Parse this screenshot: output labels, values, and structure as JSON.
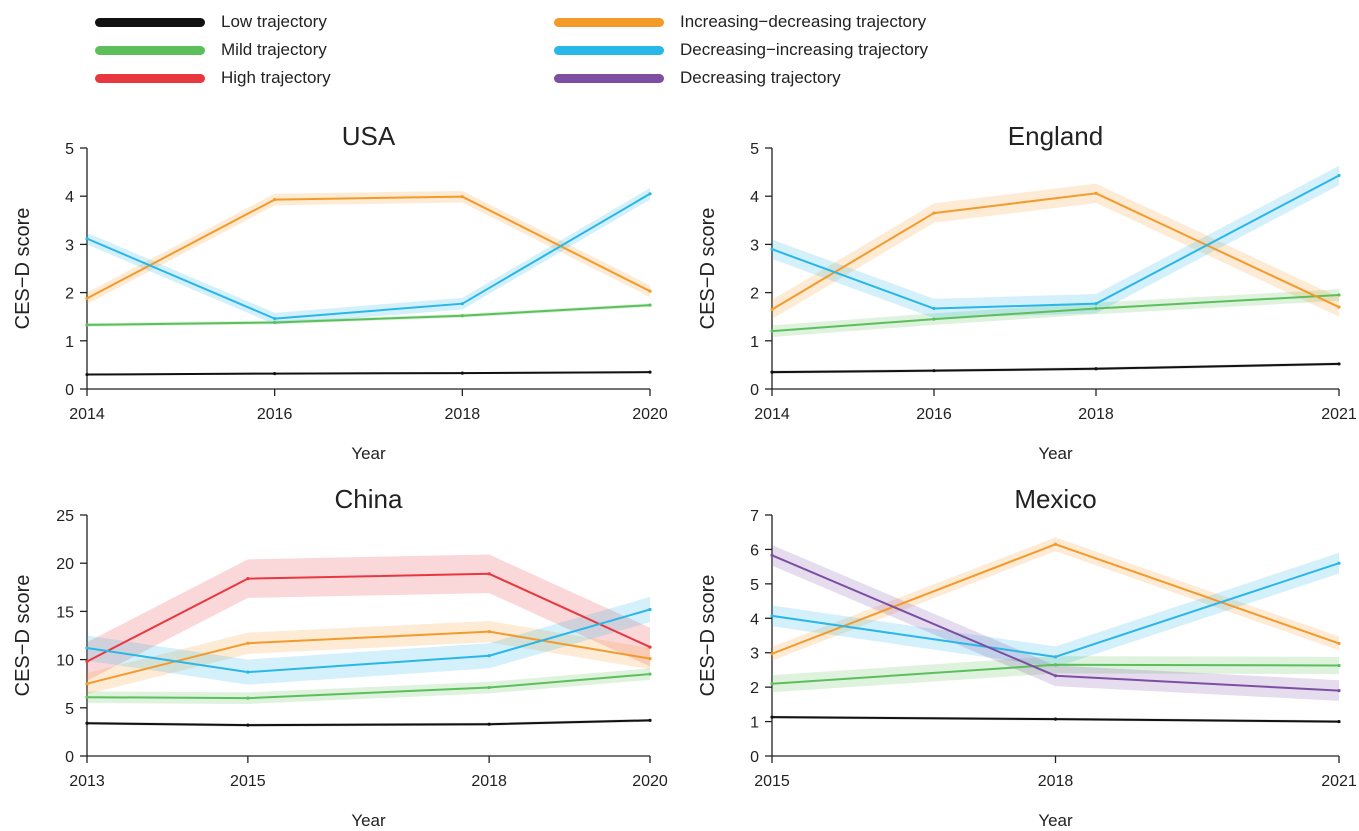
{
  "legend": [
    {
      "key": "low",
      "label": "Low trajectory",
      "color": "#111111"
    },
    {
      "key": "mild",
      "label": "Mild trajectory",
      "color": "#5cbf5c"
    },
    {
      "key": "high",
      "label": "High trajectory",
      "color": "#e8373f"
    },
    {
      "key": "incdec",
      "label": "Increasing−decreasing trajectory",
      "color": "#f39a2b"
    },
    {
      "key": "decinc",
      "label": "Decreasing−increasing trajectory",
      "color": "#29b6e8"
    },
    {
      "key": "dec",
      "label": "Decreasing trajectory",
      "color": "#7e4ea3"
    }
  ],
  "chart_data": [
    {
      "type": "line",
      "title": "USA",
      "xlabel": "Year",
      "ylabel": "CES−D score",
      "x": [
        2014,
        2016,
        2018,
        2020
      ],
      "xlim": [
        2014,
        2020
      ],
      "ylim": [
        0,
        5
      ],
      "yticks": [
        0,
        1,
        2,
        3,
        4,
        5
      ],
      "series": [
        {
          "name": "Low trajectory",
          "key": "low",
          "values": [
            0.3,
            0.32,
            0.33,
            0.35
          ],
          "band": 0.02
        },
        {
          "name": "Mild trajectory",
          "key": "mild",
          "values": [
            1.33,
            1.38,
            1.52,
            1.74
          ],
          "band": 0.04
        },
        {
          "name": "Increasing−decreasing trajectory",
          "key": "incdec",
          "values": [
            1.88,
            3.93,
            3.99,
            2.03
          ],
          "band": 0.12
        },
        {
          "name": "Decreasing−increasing trajectory",
          "key": "decinc",
          "values": [
            3.12,
            1.46,
            1.77,
            4.05
          ],
          "band": 0.12
        }
      ]
    },
    {
      "type": "line",
      "title": "England",
      "xlabel": "Year",
      "ylabel": "CES−D score",
      "x": [
        2014,
        2016,
        2018,
        2021
      ],
      "xlim": [
        2014,
        2021
      ],
      "ylim": [
        0,
        5
      ],
      "yticks": [
        0,
        1,
        2,
        3,
        4,
        5
      ],
      "series": [
        {
          "name": "Low trajectory",
          "key": "low",
          "values": [
            0.35,
            0.38,
            0.42,
            0.52
          ],
          "band": 0.03
        },
        {
          "name": "Mild trajectory",
          "key": "mild",
          "values": [
            1.2,
            1.45,
            1.67,
            1.95
          ],
          "band": 0.12
        },
        {
          "name": "Increasing−decreasing trajectory",
          "key": "incdec",
          "values": [
            1.65,
            3.65,
            4.06,
            1.7
          ],
          "band": 0.2
        },
        {
          "name": "Decreasing−increasing trajectory",
          "key": "decinc",
          "values": [
            2.9,
            1.67,
            1.77,
            4.43
          ],
          "band": 0.2
        }
      ]
    },
    {
      "type": "line",
      "title": "China",
      "xlabel": "Year",
      "ylabel": "CES−D score",
      "x": [
        2013,
        2015,
        2018,
        2020
      ],
      "xlim": [
        2013,
        2020
      ],
      "ylim": [
        0,
        25
      ],
      "yticks": [
        0,
        5,
        10,
        15,
        20,
        25
      ],
      "series": [
        {
          "name": "Low trajectory",
          "key": "low",
          "values": [
            3.4,
            3.2,
            3.3,
            3.7
          ],
          "band": 0.15
        },
        {
          "name": "Mild trajectory",
          "key": "mild",
          "values": [
            6.1,
            6.0,
            7.1,
            8.5
          ],
          "band": 0.6
        },
        {
          "name": "High trajectory",
          "key": "high",
          "values": [
            9.8,
            18.4,
            18.9,
            11.3
          ],
          "band": 2.0
        },
        {
          "name": "Increasing−decreasing trajectory",
          "key": "incdec",
          "values": [
            7.5,
            11.7,
            12.9,
            10.1
          ],
          "band": 1.1
        },
        {
          "name": "Decreasing−increasing trajectory",
          "key": "decinc",
          "values": [
            11.2,
            8.7,
            10.4,
            15.2
          ],
          "band": 1.3
        }
      ]
    },
    {
      "type": "line",
      "title": "Mexico",
      "xlabel": "Year",
      "ylabel": "CES−D score",
      "x": [
        2015,
        2018,
        2021
      ],
      "xlim": [
        2015,
        2021
      ],
      "ylim": [
        0,
        7
      ],
      "yticks": [
        0,
        1,
        2,
        3,
        4,
        5,
        6,
        7
      ],
      "series": [
        {
          "name": "Low trajectory",
          "key": "low",
          "values": [
            1.13,
            1.07,
            1.0
          ],
          "band": 0.04
        },
        {
          "name": "Mild trajectory",
          "key": "mild",
          "values": [
            2.1,
            2.65,
            2.63
          ],
          "band": 0.25
        },
        {
          "name": "Increasing−decreasing trajectory",
          "key": "incdec",
          "values": [
            2.97,
            6.15,
            3.27
          ],
          "band": 0.2
        },
        {
          "name": "Decreasing−increasing trajectory",
          "key": "decinc",
          "values": [
            4.07,
            2.88,
            5.6
          ],
          "band": 0.3
        },
        {
          "name": "Decreasing trajectory",
          "key": "dec",
          "values": [
            5.83,
            2.33,
            1.9
          ],
          "band": 0.3
        }
      ]
    }
  ]
}
